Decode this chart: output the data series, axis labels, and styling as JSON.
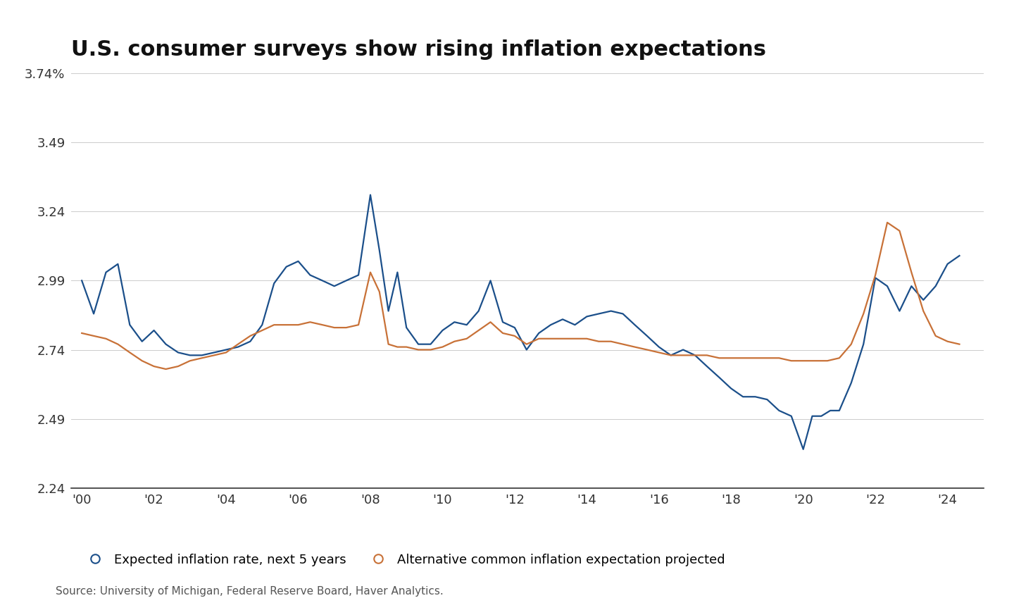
{
  "title": "U.S. consumer surveys show rising inflation expectations",
  "source": "Source: University of Michigan, Federal Reserve Board, Haver Analytics.",
  "legend_blue": "Expected inflation rate, next 5 years",
  "legend_orange": "Alternative common inflation expectation projected",
  "blue_color": "#1B4F8A",
  "orange_color": "#C87137",
  "background_color": "#ffffff",
  "ylim": [
    2.24,
    3.74
  ],
  "yticks": [
    2.24,
    2.49,
    2.74,
    2.99,
    3.24,
    3.49,
    3.74
  ],
  "ytick_labels": [
    "2.24",
    "2.49",
    "2.74",
    "2.99",
    "3.24",
    "3.49",
    "3.74%"
  ],
  "xtick_years": [
    2000,
    2002,
    2004,
    2006,
    2008,
    2010,
    2012,
    2014,
    2016,
    2018,
    2020,
    2022,
    2024
  ],
  "xtick_labels": [
    "'00",
    "'02",
    "'04",
    "'06",
    "'08",
    "'10",
    "'12",
    "'14",
    "'16",
    "'18",
    "'20",
    "'22",
    "'24"
  ],
  "blue_x": [
    2000.0,
    2000.33,
    2000.67,
    2001.0,
    2001.33,
    2001.67,
    2002.0,
    2002.33,
    2002.67,
    2003.0,
    2003.33,
    2003.67,
    2004.0,
    2004.33,
    2004.67,
    2005.0,
    2005.33,
    2005.67,
    2006.0,
    2006.33,
    2006.67,
    2007.0,
    2007.33,
    2007.67,
    2008.0,
    2008.25,
    2008.5,
    2008.75,
    2009.0,
    2009.33,
    2009.67,
    2010.0,
    2010.33,
    2010.67,
    2011.0,
    2011.33,
    2011.67,
    2012.0,
    2012.33,
    2012.67,
    2013.0,
    2013.33,
    2013.67,
    2014.0,
    2014.33,
    2014.67,
    2015.0,
    2015.33,
    2015.67,
    2016.0,
    2016.33,
    2016.67,
    2017.0,
    2017.33,
    2017.67,
    2018.0,
    2018.33,
    2018.67,
    2019.0,
    2019.33,
    2019.67,
    2020.0,
    2020.25,
    2020.5,
    2020.75,
    2021.0,
    2021.33,
    2021.67,
    2022.0,
    2022.33,
    2022.67,
    2023.0,
    2023.33,
    2023.67,
    2024.0,
    2024.33
  ],
  "blue_y": [
    2.99,
    2.87,
    3.02,
    3.05,
    2.83,
    2.77,
    2.81,
    2.76,
    2.73,
    2.72,
    2.72,
    2.73,
    2.74,
    2.75,
    2.77,
    2.83,
    2.98,
    3.04,
    3.06,
    3.01,
    2.99,
    2.97,
    2.99,
    3.01,
    3.3,
    3.1,
    2.88,
    3.02,
    2.82,
    2.76,
    2.76,
    2.81,
    2.84,
    2.83,
    2.88,
    2.99,
    2.84,
    2.82,
    2.74,
    2.8,
    2.83,
    2.85,
    2.83,
    2.86,
    2.87,
    2.88,
    2.87,
    2.83,
    2.79,
    2.75,
    2.72,
    2.74,
    2.72,
    2.68,
    2.64,
    2.6,
    2.57,
    2.57,
    2.56,
    2.52,
    2.5,
    2.38,
    2.5,
    2.5,
    2.52,
    2.52,
    2.62,
    2.76,
    3.0,
    2.97,
    2.88,
    2.97,
    2.92,
    2.97,
    3.05,
    3.08
  ],
  "orange_x": [
    2000.0,
    2000.33,
    2000.67,
    2001.0,
    2001.33,
    2001.67,
    2002.0,
    2002.33,
    2002.67,
    2003.0,
    2003.33,
    2003.67,
    2004.0,
    2004.33,
    2004.67,
    2005.0,
    2005.33,
    2005.67,
    2006.0,
    2006.33,
    2006.67,
    2007.0,
    2007.33,
    2007.67,
    2008.0,
    2008.25,
    2008.5,
    2008.75,
    2009.0,
    2009.33,
    2009.67,
    2010.0,
    2010.33,
    2010.67,
    2011.0,
    2011.33,
    2011.67,
    2012.0,
    2012.33,
    2012.67,
    2013.0,
    2013.33,
    2013.67,
    2014.0,
    2014.33,
    2014.67,
    2015.0,
    2015.33,
    2015.67,
    2016.0,
    2016.33,
    2016.67,
    2017.0,
    2017.33,
    2017.67,
    2018.0,
    2018.33,
    2018.67,
    2019.0,
    2019.33,
    2019.67,
    2020.0,
    2020.33,
    2020.67,
    2021.0,
    2021.33,
    2021.67,
    2022.0,
    2022.33,
    2022.67,
    2023.0,
    2023.33,
    2023.67,
    2024.0,
    2024.33
  ],
  "orange_y": [
    2.8,
    2.79,
    2.78,
    2.76,
    2.73,
    2.7,
    2.68,
    2.67,
    2.68,
    2.7,
    2.71,
    2.72,
    2.73,
    2.76,
    2.79,
    2.81,
    2.83,
    2.83,
    2.83,
    2.84,
    2.83,
    2.82,
    2.82,
    2.83,
    3.02,
    2.95,
    2.76,
    2.75,
    2.75,
    2.74,
    2.74,
    2.75,
    2.77,
    2.78,
    2.81,
    2.84,
    2.8,
    2.79,
    2.76,
    2.78,
    2.78,
    2.78,
    2.78,
    2.78,
    2.77,
    2.77,
    2.76,
    2.75,
    2.74,
    2.73,
    2.72,
    2.72,
    2.72,
    2.72,
    2.71,
    2.71,
    2.71,
    2.71,
    2.71,
    2.71,
    2.7,
    2.7,
    2.7,
    2.7,
    2.71,
    2.76,
    2.87,
    3.01,
    3.2,
    3.17,
    3.02,
    2.88,
    2.79,
    2.77,
    2.76
  ]
}
